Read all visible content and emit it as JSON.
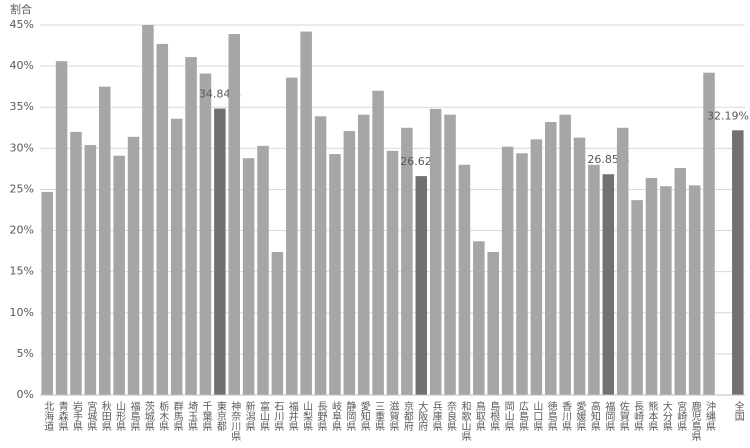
{
  "chart_data": {
    "type": "bar",
    "y_label": "割合",
    "categories": [
      "北海道",
      "青森県",
      "岩手県",
      "宮城県",
      "秋田県",
      "山形県",
      "福島県",
      "茨城県",
      "栃木県",
      "群馬県",
      "埼玉県",
      "千葉県",
      "東京都",
      "神奈川県",
      "新潟県",
      "富山県",
      "石川県",
      "福井県",
      "山梨県",
      "長野県",
      "岐阜県",
      "静岡県",
      "愛知県",
      "三重県",
      "滋賀県",
      "京都府",
      "大阪府",
      "兵庫県",
      "奈良県",
      "和歌山県",
      "鳥取県",
      "島根県",
      "岡山県",
      "広島県",
      "山口県",
      "徳島県",
      "香川県",
      "愛媛県",
      "高知県",
      "福岡県",
      "佐賀県",
      "長崎県",
      "熊本県",
      "大分県",
      "宮崎県",
      "鹿児島県",
      "沖縄県",
      null,
      "全国"
    ],
    "values": [
      24.7,
      40.6,
      32.0,
      30.4,
      37.5,
      29.1,
      31.4,
      45.0,
      42.7,
      33.6,
      41.1,
      39.1,
      34.84,
      43.9,
      28.8,
      30.3,
      17.4,
      38.6,
      44.2,
      33.9,
      29.3,
      32.1,
      34.1,
      37.0,
      29.7,
      32.5,
      26.62,
      34.8,
      34.1,
      28.0,
      18.7,
      17.4,
      30.2,
      29.4,
      31.1,
      33.2,
      34.1,
      31.3,
      28.0,
      26.85,
      32.5,
      23.7,
      26.4,
      25.4,
      27.6,
      25.5,
      39.2,
      null,
      32.19
    ],
    "value_labels": [
      null,
      null,
      null,
      null,
      null,
      null,
      null,
      null,
      null,
      null,
      null,
      null,
      "34.84%",
      null,
      null,
      null,
      null,
      null,
      null,
      null,
      null,
      null,
      null,
      null,
      null,
      null,
      "26.62%",
      null,
      null,
      null,
      null,
      null,
      null,
      null,
      null,
      null,
      null,
      null,
      null,
      "26.85%",
      null,
      null,
      null,
      null,
      null,
      null,
      null,
      null,
      "32.19%"
    ],
    "colors": [
      "#a6a6a6",
      "#a6a6a6",
      "#a6a6a6",
      "#a6a6a6",
      "#a6a6a6",
      "#a6a6a6",
      "#a6a6a6",
      "#a6a6a6",
      "#a6a6a6",
      "#a6a6a6",
      "#a6a6a6",
      "#a6a6a6",
      "#717171",
      "#a6a6a6",
      "#a6a6a6",
      "#a6a6a6",
      "#a6a6a6",
      "#a6a6a6",
      "#a6a6a6",
      "#a6a6a6",
      "#a6a6a6",
      "#a6a6a6",
      "#a6a6a6",
      "#a6a6a6",
      "#a6a6a6",
      "#a6a6a6",
      "#717171",
      "#a6a6a6",
      "#a6a6a6",
      "#a6a6a6",
      "#a6a6a6",
      "#a6a6a6",
      "#a6a6a6",
      "#a6a6a6",
      "#a6a6a6",
      "#a6a6a6",
      "#a6a6a6",
      "#a6a6a6",
      "#a6a6a6",
      "#717171",
      "#a6a6a6",
      "#a6a6a6",
      "#a6a6a6",
      "#a6a6a6",
      "#a6a6a6",
      "#a6a6a6",
      "#a6a6a6",
      "#a6a6a6",
      "#717171"
    ],
    "ylim": [
      0,
      45
    ],
    "yticks": [
      {
        "value": 0,
        "label": "0%"
      },
      {
        "value": 5,
        "label": "5%"
      },
      {
        "value": 10,
        "label": "10%"
      },
      {
        "value": 15,
        "label": "15%"
      },
      {
        "value": 20,
        "label": "20%"
      },
      {
        "value": 25,
        "label": "25%"
      },
      {
        "value": 30,
        "label": "30%"
      },
      {
        "value": 35,
        "label": "35%"
      },
      {
        "value": 40,
        "label": "40%"
      },
      {
        "value": 45,
        "label": "45%"
      }
    ],
    "grid": true
  }
}
